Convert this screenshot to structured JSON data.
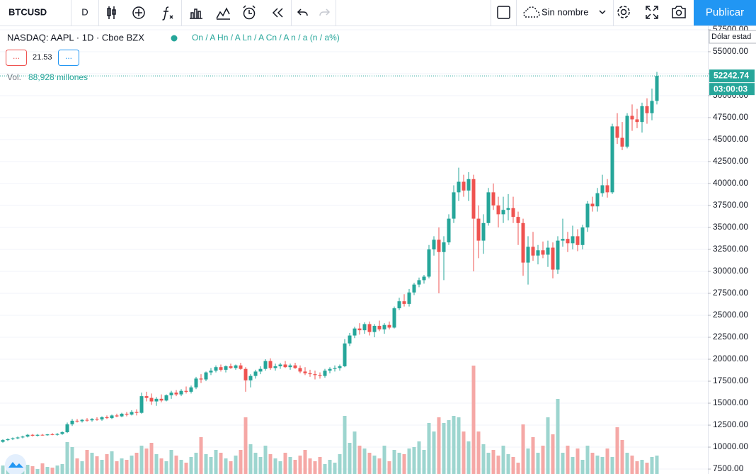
{
  "toolbar": {
    "symbol": "BTCUSD",
    "interval": "D",
    "layout_name": "Sin nombre",
    "publish": "Publicar"
  },
  "legend": {
    "instrument": "NASDAQ: AAPL · 1D · Cboe BZX",
    "ohlc": "On / A Hn / A Ln / A Cn / A n / a (n / a%)",
    "button_1": "...",
    "indicator_value": "21.53",
    "button_2": "...",
    "volume_label": "Vol.",
    "volume_value": "88,928 millones"
  },
  "tooltip": "Dólar estad",
  "chart_data": {
    "type": "candlestick",
    "up_color": "#26a69a",
    "down_color": "#ef5350",
    "volume_up_color": "#9dd5cf",
    "volume_down_color": "#f5a8a6",
    "grid": true,
    "ylim": [
      6940,
      57900
    ],
    "yticks": [
      {
        "value": 7500,
        "label": "7500.00"
      },
      {
        "value": 10000,
        "label": "10000.00"
      },
      {
        "value": 12500,
        "label": "12500.00"
      },
      {
        "value": 15000,
        "label": "15000.00"
      },
      {
        "value": 17500,
        "label": "17500.00"
      },
      {
        "value": 20000,
        "label": "20000.00"
      },
      {
        "value": 22500,
        "label": "22500.00"
      },
      {
        "value": 25000,
        "label": "25000.00"
      },
      {
        "value": 27500,
        "label": "27500.00"
      },
      {
        "value": 30000,
        "label": "30000.00"
      },
      {
        "value": 32500,
        "label": "32500.00"
      },
      {
        "value": 35000,
        "label": "35000.00"
      },
      {
        "value": 37500,
        "label": "37500.00"
      },
      {
        "value": 40000,
        "label": "40000.00"
      },
      {
        "value": 42500,
        "label": "42500.00"
      },
      {
        "value": 45000,
        "label": "45000.00"
      },
      {
        "value": 47500,
        "label": "47500.00"
      },
      {
        "value": 50000,
        "label": "50000.00"
      },
      {
        "value": 52500,
        "label": "52500.00"
      },
      {
        "value": 55000,
        "label": "55000.00"
      },
      {
        "value": 57500,
        "label": "57500.00"
      }
    ],
    "last_price": 52242.74,
    "countdown": "03:00:03",
    "volume_lim": [
      0,
      200
    ],
    "candles": [
      [
        10600,
        10900,
        10500,
        10800
      ],
      [
        10800,
        11000,
        10700,
        10900
      ],
      [
        10900,
        11100,
        10800,
        11000
      ],
      [
        11000,
        11200,
        10900,
        11100
      ],
      [
        11100,
        11300,
        11000,
        11200
      ],
      [
        11200,
        11500,
        11100,
        11400
      ],
      [
        11400,
        11500,
        11200,
        11300
      ],
      [
        11300,
        11500,
        11200,
        11400
      ],
      [
        11400,
        11500,
        11300,
        11350
      ],
      [
        11350,
        11500,
        11300,
        11450
      ],
      [
        11450,
        11600,
        11350,
        11400
      ],
      [
        11400,
        11600,
        11300,
        11500
      ],
      [
        11500,
        11800,
        11400,
        11700
      ],
      [
        11700,
        12800,
        11600,
        12600
      ],
      [
        12600,
        13200,
        12400,
        13000
      ],
      [
        13000,
        13200,
        12800,
        12950
      ],
      [
        12950,
        13200,
        12800,
        13100
      ],
      [
        13100,
        13300,
        12900,
        13050
      ],
      [
        13050,
        13300,
        12900,
        13200
      ],
      [
        13200,
        13400,
        13000,
        13150
      ],
      [
        13150,
        13500,
        13000,
        13400
      ],
      [
        13400,
        13600,
        13200,
        13300
      ],
      [
        13300,
        13700,
        13200,
        13600
      ],
      [
        13600,
        13800,
        13400,
        13500
      ],
      [
        13500,
        13900,
        13400,
        13800
      ],
      [
        13800,
        14000,
        13500,
        13700
      ],
      [
        13700,
        14200,
        13600,
        14000
      ],
      [
        14000,
        14300,
        13600,
        13900
      ],
      [
        13900,
        16200,
        13800,
        15800
      ],
      [
        15800,
        16300,
        15200,
        15600
      ],
      [
        15600,
        16100,
        14800,
        15200
      ],
      [
        15200,
        15700,
        14700,
        15500
      ],
      [
        15500,
        16000,
        15100,
        15300
      ],
      [
        15300,
        16000,
        15200,
        15900
      ],
      [
        15900,
        16400,
        15500,
        16200
      ],
      [
        16200,
        16500,
        15800,
        16000
      ],
      [
        16000,
        16600,
        15800,
        16400
      ],
      [
        16400,
        16900,
        16100,
        16300
      ],
      [
        16300,
        17000,
        16100,
        16800
      ],
      [
        16800,
        18000,
        16600,
        17800
      ],
      [
        17800,
        18300,
        17300,
        17700
      ],
      [
        17700,
        18600,
        17500,
        18500
      ],
      [
        18500,
        19000,
        18200,
        18700
      ],
      [
        18700,
        19300,
        18500,
        19100
      ],
      [
        19100,
        19400,
        18600,
        18800
      ],
      [
        18800,
        19300,
        18500,
        19200
      ],
      [
        19200,
        19500,
        18900,
        19000
      ],
      [
        19000,
        19400,
        18800,
        19300
      ],
      [
        19300,
        19600,
        18800,
        18900
      ],
      [
        18900,
        19100,
        16300,
        17600
      ],
      [
        17600,
        18300,
        16800,
        18100
      ],
      [
        18100,
        18800,
        17800,
        18600
      ],
      [
        18600,
        19200,
        18300,
        18900
      ],
      [
        18900,
        20000,
        18700,
        19800
      ],
      [
        19800,
        20100,
        18800,
        19000
      ],
      [
        19000,
        19500,
        18700,
        19200
      ],
      [
        19200,
        19600,
        18900,
        19400
      ],
      [
        19400,
        19800,
        19000,
        19100
      ],
      [
        19100,
        19500,
        18800,
        19300
      ],
      [
        19300,
        19600,
        18900,
        19000
      ],
      [
        19000,
        19300,
        18400,
        18600
      ],
      [
        18600,
        19100,
        18200,
        18400
      ],
      [
        18400,
        18800,
        18000,
        18300
      ],
      [
        18300,
        18700,
        17700,
        18200
      ],
      [
        18200,
        18500,
        17800,
        18100
      ],
      [
        18100,
        18900,
        17900,
        18700
      ],
      [
        18700,
        19100,
        18400,
        18900
      ],
      [
        18900,
        19300,
        18600,
        19000
      ],
      [
        19000,
        19400,
        18700,
        19200
      ],
      [
        19200,
        22300,
        19100,
        21800
      ],
      [
        21800,
        23000,
        21500,
        22700
      ],
      [
        22700,
        23700,
        22400,
        23500
      ],
      [
        23500,
        24100,
        22800,
        23300
      ],
      [
        23300,
        24200,
        22900,
        24000
      ],
      [
        24000,
        24300,
        22700,
        23100
      ],
      [
        23100,
        24000,
        22500,
        23800
      ],
      [
        23800,
        24400,
        23200,
        23400
      ],
      [
        23400,
        24100,
        22900,
        23900
      ],
      [
        23900,
        24300,
        23400,
        23600
      ],
      [
        23600,
        26000,
        23500,
        25800
      ],
      [
        25800,
        27000,
        25600,
        26600
      ],
      [
        26600,
        27400,
        26000,
        26300
      ],
      [
        26300,
        28000,
        26000,
        27600
      ],
      [
        27600,
        28700,
        27300,
        28500
      ],
      [
        28500,
        29300,
        28200,
        29000
      ],
      [
        29000,
        29600,
        28600,
        29400
      ],
      [
        29400,
        33000,
        29200,
        32500
      ],
      [
        32500,
        34000,
        31800,
        33600
      ],
      [
        33600,
        35000,
        27500,
        32200
      ],
      [
        32200,
        34000,
        29000,
        33300
      ],
      [
        33300,
        36500,
        33000,
        36000
      ],
      [
        36000,
        39800,
        35500,
        39000
      ],
      [
        39000,
        41800,
        38000,
        40200
      ],
      [
        40200,
        41000,
        38500,
        39200
      ],
      [
        39200,
        41300,
        38000,
        40500
      ],
      [
        40500,
        41000,
        30000,
        36000
      ],
      [
        36000,
        37500,
        31500,
        33500
      ],
      [
        33500,
        36500,
        32000,
        35500
      ],
      [
        35500,
        39500,
        35200,
        39000
      ],
      [
        39000,
        40000,
        37000,
        37500
      ],
      [
        37500,
        38500,
        35000,
        36500
      ],
      [
        36500,
        38500,
        35500,
        37000
      ],
      [
        37000,
        38800,
        35800,
        37200
      ],
      [
        37200,
        38500,
        35500,
        36200
      ],
      [
        36200,
        36800,
        33000,
        35500
      ],
      [
        35500,
        36000,
        29500,
        31000
      ],
      [
        31000,
        34000,
        28500,
        32800
      ],
      [
        32800,
        34500,
        31200,
        31800
      ],
      [
        31800,
        33000,
        30800,
        32400
      ],
      [
        32400,
        33400,
        31500,
        31900
      ],
      [
        31900,
        33500,
        30500,
        32700
      ],
      [
        32700,
        33300,
        29200,
        30200
      ],
      [
        30200,
        34000,
        29700,
        33500
      ],
      [
        33500,
        36000,
        32800,
        33700
      ],
      [
        33700,
        34500,
        32200,
        33200
      ],
      [
        33200,
        35200,
        32500,
        34000
      ],
      [
        34000,
        34800,
        32300,
        33000
      ],
      [
        33000,
        35300,
        32500,
        35000
      ],
      [
        35000,
        38000,
        34500,
        37700
      ],
      [
        37700,
        38500,
        36800,
        37400
      ],
      [
        37400,
        39500,
        36800,
        38900
      ],
      [
        38900,
        41000,
        38500,
        39800
      ],
      [
        39800,
        40500,
        38400,
        39000
      ],
      [
        39000,
        46800,
        38800,
        46500
      ],
      [
        46500,
        48000,
        44500,
        45200
      ],
      [
        45200,
        47000,
        43800,
        44200
      ],
      [
        44200,
        48000,
        44000,
        47700
      ],
      [
        47700,
        49000,
        46000,
        47300
      ],
      [
        47300,
        48500,
        46300,
        47000
      ],
      [
        47000,
        49200,
        45800,
        48800
      ],
      [
        48800,
        49700,
        46800,
        48000
      ],
      [
        48000,
        50800,
        47200,
        49400
      ],
      [
        49400,
        52700,
        49000,
        52242.74
      ]
    ],
    "volume": [
      12,
      8,
      14,
      10,
      9,
      13,
      11,
      7,
      15,
      10,
      9,
      12,
      14,
      45,
      38,
      22,
      18,
      34,
      30,
      25,
      20,
      28,
      32,
      18,
      22,
      20,
      26,
      30,
      40,
      36,
      44,
      28,
      22,
      18,
      34,
      26,
      20,
      16,
      24,
      30,
      52,
      28,
      24,
      34,
      30,
      22,
      18,
      26,
      34,
      80,
      42,
      30,
      24,
      40,
      28,
      22,
      18,
      30,
      24,
      20,
      26,
      34,
      22,
      18,
      24,
      14,
      20,
      16,
      28,
      82,
      44,
      60,
      40,
      36,
      30,
      26,
      22,
      40,
      18,
      34,
      30,
      28,
      36,
      38,
      46,
      34,
      72,
      60,
      80,
      72,
      76,
      82,
      80,
      60,
      46,
      153,
      60,
      42,
      30,
      34,
      26,
      40,
      28,
      24,
      16,
      70,
      36,
      52,
      30,
      40,
      80,
      56,
      106,
      30,
      40,
      24,
      36,
      20,
      40,
      30,
      26,
      24,
      36,
      24,
      66,
      48,
      30,
      26,
      18,
      20,
      16,
      24,
      26
    ]
  }
}
